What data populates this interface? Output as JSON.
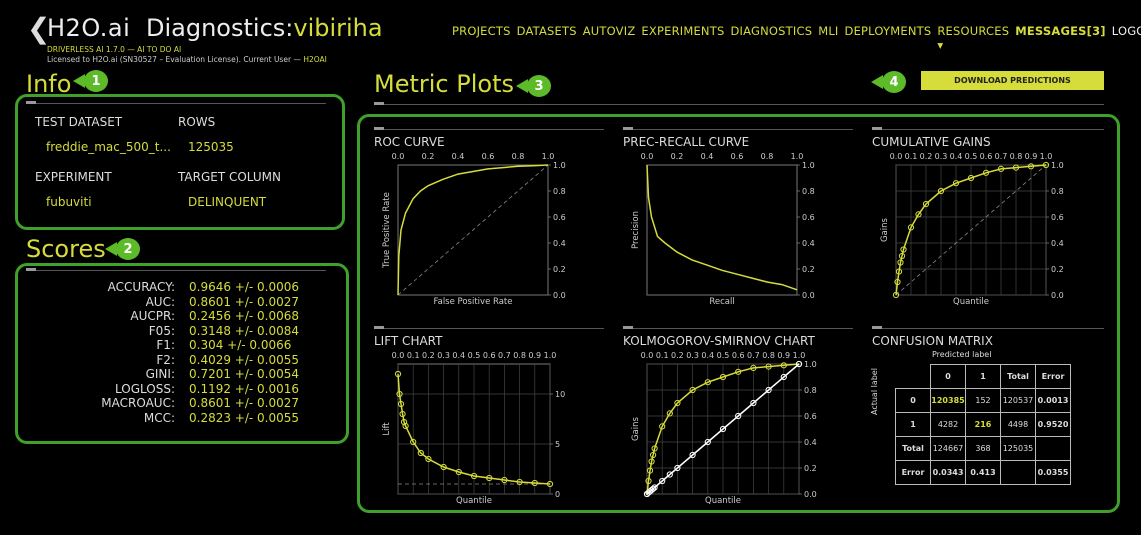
{
  "header": {
    "back_glyph": "❮",
    "brand": "H2O.ai",
    "title_prefix": "Diagnostics:",
    "title_name": "vibiriha",
    "version_line": "DRIVERLESS AI 1.7.0 — AI TO DO AI",
    "license_text": "Licensed to H2O.ai (SN30527 – Evaluation License). Current User —",
    "current_user": "H2OAI"
  },
  "nav": {
    "items": [
      "PROJECTS",
      "DATASETS",
      "AUTOVIZ",
      "EXPERIMENTS",
      "DIAGNOSTICS",
      "MLI",
      "DEPLOYMENTS",
      "RESOURCES ▾"
    ],
    "messages": "MESSAGES[3]",
    "logout": "LOGOUT"
  },
  "badges": [
    "1",
    "2",
    "3",
    "4"
  ],
  "info": {
    "heading": "Info",
    "test_dataset_label": "TEST DATASET",
    "test_dataset_value": "freddie_mac_500_t...",
    "rows_label": "ROWS",
    "rows_value": "125035",
    "experiment_label": "EXPERIMENT",
    "experiment_value": "fubuviti",
    "target_label": "TARGET COLUMN",
    "target_value": "DELINQUENT"
  },
  "scores": {
    "heading": "Scores",
    "rows": [
      {
        "k": "ACCURACY:",
        "v": "0.9646 +/- 0.0006"
      },
      {
        "k": "AUC:",
        "v": "0.8601 +/- 0.0027"
      },
      {
        "k": "AUCPR:",
        "v": "0.2456 +/- 0.0068"
      },
      {
        "k": "F05:",
        "v": "0.3148 +/- 0.0084"
      },
      {
        "k": "F1:",
        "v": "0.304 +/- 0.0066"
      },
      {
        "k": "F2:",
        "v": "0.4029 +/- 0.0055"
      },
      {
        "k": "GINI:",
        "v": "0.7201 +/- 0.0054"
      },
      {
        "k": "LOGLOSS:",
        "v": "0.1192 +/- 0.0016"
      },
      {
        "k": "MACROAUC:",
        "v": "0.8601 +/- 0.0027"
      },
      {
        "k": "MCC:",
        "v": "0.2823 +/- 0.0055"
      }
    ]
  },
  "metric_plots": {
    "heading": "Metric Plots",
    "download_label": "DOWNLOAD PREDICTIONS"
  },
  "colors": {
    "accent": "#d6dc3a",
    "frame": "#3fa02a",
    "badge": "#5dbb2a"
  },
  "chart_data": [
    {
      "type": "line",
      "title": "ROC CURVE",
      "xlabel": "False Positive Rate",
      "ylabel": "True Positive Rate",
      "xlim": [
        0,
        1
      ],
      "ylim": [
        0,
        1
      ],
      "x_ticks": [
        "0.0",
        "0.2",
        "0.4",
        "0.6",
        "0.8",
        "1.0"
      ],
      "y_ticks": [
        "0.0",
        "0.2",
        "0.4",
        "0.6",
        "0.8",
        "1.0"
      ],
      "x": [
        0,
        0.005,
        0.02,
        0.05,
        0.1,
        0.15,
        0.2,
        0.3,
        0.4,
        0.5,
        0.6,
        0.7,
        0.8,
        0.9,
        1.0
      ],
      "y": [
        0,
        0.3,
        0.5,
        0.63,
        0.74,
        0.8,
        0.84,
        0.89,
        0.93,
        0.95,
        0.97,
        0.98,
        0.99,
        0.995,
        1.0
      ]
    },
    {
      "type": "line",
      "title": "PREC-RECALL CURVE",
      "xlabel": "Recall",
      "ylabel": "Precision",
      "xlim": [
        0,
        1
      ],
      "ylim": [
        0,
        1
      ],
      "x_ticks": [
        "0.0",
        "0.2",
        "0.4",
        "0.6",
        "0.8",
        "1.0"
      ],
      "y_ticks": [
        "0.0",
        "0.2",
        "0.4",
        "0.6",
        "0.8",
        "1.0"
      ],
      "x": [
        0,
        0.01,
        0.03,
        0.07,
        0.12,
        0.2,
        0.3,
        0.4,
        0.5,
        0.6,
        0.7,
        0.8,
        0.9,
        1.0
      ],
      "y": [
        1.0,
        0.75,
        0.6,
        0.45,
        0.4,
        0.33,
        0.27,
        0.23,
        0.19,
        0.16,
        0.13,
        0.1,
        0.08,
        0.04
      ]
    },
    {
      "type": "line",
      "title": "CUMULATIVE GAINS",
      "xlabel": "Quantile",
      "ylabel": "Gains",
      "xlim": [
        0,
        1
      ],
      "ylim": [
        0,
        1
      ],
      "x_ticks": [
        "0.0",
        "0.1",
        "0.2",
        "0.3",
        "0.4",
        "0.5",
        "0.6",
        "0.7",
        "0.8",
        "0.9",
        "1.0"
      ],
      "y_ticks": [
        "0.0",
        "0.2",
        "0.4",
        "0.6",
        "0.8",
        "1.0"
      ],
      "x": [
        0,
        0.01,
        0.02,
        0.03,
        0.04,
        0.05,
        0.1,
        0.15,
        0.2,
        0.3,
        0.4,
        0.5,
        0.6,
        0.7,
        0.8,
        0.9,
        1.0
      ],
      "y": [
        0,
        0.1,
        0.18,
        0.25,
        0.3,
        0.35,
        0.52,
        0.62,
        0.7,
        0.8,
        0.86,
        0.9,
        0.94,
        0.97,
        0.98,
        0.99,
        1.0
      ]
    },
    {
      "type": "line",
      "title": "LIFT CHART",
      "xlabel": "Quantile",
      "ylabel": "Lift",
      "xlim": [
        0,
        1
      ],
      "ylim": [
        0,
        13
      ],
      "x_ticks": [
        "0.0",
        "0.1",
        "0.2",
        "0.3",
        "0.4",
        "0.5",
        "0.6",
        "0.7",
        "0.8",
        "0.9",
        "1.0"
      ],
      "y_ticks": [
        "0",
        "5",
        "10"
      ],
      "x": [
        0,
        0.01,
        0.02,
        0.03,
        0.04,
        0.05,
        0.1,
        0.15,
        0.2,
        0.3,
        0.4,
        0.5,
        0.6,
        0.7,
        0.8,
        0.9,
        1.0
      ],
      "y": [
        12,
        10,
        9,
        8,
        7.2,
        6.8,
        5.2,
        4.1,
        3.5,
        2.7,
        2.2,
        1.8,
        1.6,
        1.4,
        1.2,
        1.1,
        1.0
      ]
    },
    {
      "type": "line",
      "title": "KOLMOGOROV-SMIRNOV CHART",
      "xlabel": "Quantile",
      "ylabel": "Gains",
      "xlim": [
        0,
        1
      ],
      "ylim": [
        0,
        1
      ],
      "x_ticks": [
        "0.0",
        "0.1",
        "0.2",
        "0.3",
        "0.4",
        "0.5",
        "0.6",
        "0.7",
        "0.8",
        "0.9",
        "1.0"
      ],
      "y_ticks": [
        "0.0",
        "0.2",
        "0.4",
        "0.6",
        "0.8",
        "1.0"
      ],
      "series": [
        {
          "values_x": [
            0,
            0.01,
            0.02,
            0.03,
            0.04,
            0.05,
            0.1,
            0.15,
            0.2,
            0.3,
            0.4,
            0.5,
            0.6,
            0.7,
            0.8,
            0.9,
            1.0
          ],
          "values_y": [
            0,
            0.1,
            0.18,
            0.25,
            0.3,
            0.35,
            0.52,
            0.62,
            0.7,
            0.8,
            0.86,
            0.9,
            0.94,
            0.97,
            0.98,
            0.99,
            1.0
          ],
          "color": "#d6dc3a"
        },
        {
          "values_x": [
            0,
            0.01,
            0.02,
            0.03,
            0.04,
            0.05,
            0.1,
            0.15,
            0.2,
            0.3,
            0.4,
            0.5,
            0.6,
            0.7,
            0.8,
            0.9,
            1.0
          ],
          "values_y": [
            0,
            0.01,
            0.02,
            0.03,
            0.04,
            0.05,
            0.1,
            0.15,
            0.2,
            0.3,
            0.4,
            0.5,
            0.6,
            0.7,
            0.8,
            0.9,
            1.0
          ],
          "color": "#ffffff"
        }
      ]
    },
    {
      "type": "table",
      "title": "CONFUSION MATRIX",
      "col_label": "Predicted label",
      "row_label": "Actual label",
      "header": [
        "",
        "0",
        "1",
        "Total",
        "Error"
      ],
      "rows": [
        [
          "0",
          "120385",
          "152",
          "120537",
          "0.0013"
        ],
        [
          "1",
          "4282",
          "216",
          "4498",
          "0.9520"
        ],
        [
          "Total",
          "124667",
          "368",
          "125035",
          ""
        ],
        [
          "Error",
          "0.0343",
          "0.413",
          "",
          "0.0355"
        ]
      ]
    }
  ]
}
